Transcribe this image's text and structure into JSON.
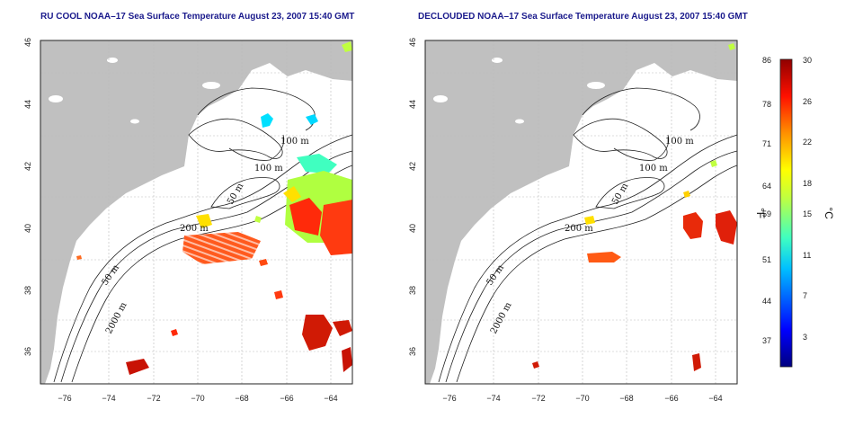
{
  "panels": [
    {
      "title": "RU COOL NOAA–17 Sea Surface Temperature August 23, 2007 15:40 GMT",
      "x_ticks": [
        "−76",
        "−74",
        "−72",
        "−70",
        "−68",
        "−66",
        "−64"
      ],
      "y_ticks": [
        "36",
        "38",
        "40",
        "42",
        "44",
        "46"
      ],
      "contour_labels": [
        "100 m",
        "100 m",
        "50 m",
        "200 m",
        "50 m",
        "2000 m"
      ]
    },
    {
      "title": "DECLOUDED NOAA–17 Sea Surface Temperature August 23, 2007 15:40 GMT",
      "x_ticks": [
        "−76",
        "−74",
        "−72",
        "−70",
        "−68",
        "−66",
        "−64"
      ],
      "y_ticks": [
        "36",
        "38",
        "40",
        "42",
        "44",
        "46"
      ],
      "contour_labels": [
        "100 m",
        "100 m",
        "50 m",
        "200 m",
        "50 m",
        "2000 m"
      ]
    }
  ],
  "colorbar": {
    "fahrenheit_ticks": [
      "86",
      "78",
      "71",
      "64",
      "59",
      "51",
      "44",
      "37"
    ],
    "celsius_ticks": [
      "30",
      "26",
      "22",
      "18",
      "15",
      "11",
      "7",
      "3"
    ],
    "fahrenheit_unit": "°F",
    "celsius_unit": "°C",
    "colors": [
      "#00007f",
      "#0000ff",
      "#0080ff",
      "#00ffff",
      "#80ff80",
      "#ffff00",
      "#ff8000",
      "#ff0000",
      "#7f0000"
    ]
  },
  "map": {
    "land_color": "#c0c0c0",
    "ocean_color": "#ffffff",
    "lon_range": [
      -77,
      -63
    ],
    "lat_range": [
      35,
      46
    ]
  }
}
